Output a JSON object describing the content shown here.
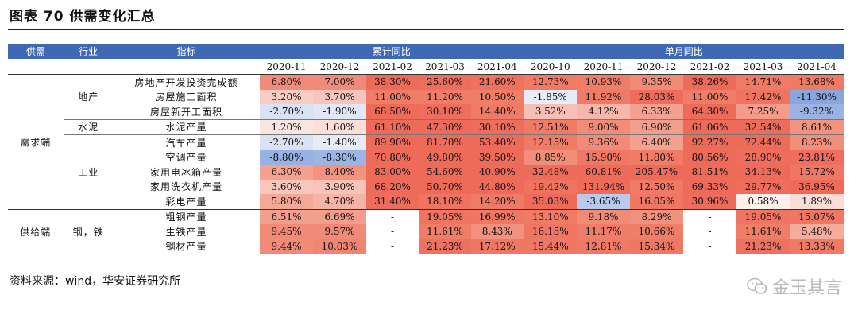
{
  "title": "图表 70 供需变化汇总",
  "source": "资料来源：wind，华安证券研究所",
  "watermark": "金玉其言",
  "watermark_icon": "wechat-icon",
  "headers": {
    "supply_demand": "供需",
    "industry": "行业",
    "indicator": "指标",
    "cumulative": "累计同比",
    "monthly": "单月同比"
  },
  "cumulative_dates": [
    "2020-11",
    "2020-12",
    "2021-02",
    "2021-03",
    "2021-04"
  ],
  "monthly_dates": [
    "2020-10",
    "2020-11",
    "2020-12",
    "2021-02",
    "2021-03",
    "2021-04"
  ],
  "groups": {
    "demand": "需求端",
    "supply": "供给端",
    "real_estate": "地产",
    "cement": "水泥",
    "industry": "工业",
    "steel": "钢，铁"
  },
  "rows": [
    {
      "indicator": "房地产开发投资完成额",
      "cells": [
        "6.80%",
        "7.00%",
        "38.30%",
        "25.60%",
        "21.60%",
        "12.73%",
        "10.93%",
        "9.35%",
        "38.26%",
        "14.71%",
        "13.68%"
      ],
      "colors": [
        "#f08a7a",
        "#f08a7a",
        "#ee6a59",
        "#ee6e5c",
        "#ee725f",
        "#ef7b67",
        "#ef7d68",
        "#f18b77",
        "#ee6a59",
        "#ef7a66",
        "#ef7b67"
      ]
    },
    {
      "indicator": "房屋施工面积",
      "cells": [
        "3.20%",
        "3.70%",
        "11.00%",
        "11.20%",
        "10.50%",
        "-1.85%",
        "11.92%",
        "28.03%",
        "11.00%",
        "17.42%",
        "-11.30%"
      ],
      "colors": [
        "#f9cdc4",
        "#f8c5bc",
        "#ef7d68",
        "#ef7d68",
        "#ef7e69",
        "#e8ecf8",
        "#ef7b67",
        "#ee6c5b",
        "#ef7d68",
        "#ee7461",
        "#8aa6dd"
      ]
    },
    {
      "indicator": "房屋新开工面积",
      "cells": [
        "-2.70%",
        "-1.90%",
        "68.50%",
        "30.10%",
        "14.40%",
        "3.52%",
        "4.12%",
        "6.33%",
        "64.30%",
        "7.25%",
        "-9.32%"
      ],
      "colors": [
        "#d9e2f4",
        "#e1e7f6",
        "#ee6a59",
        "#ee6d5c",
        "#ef7a66",
        "#f7bfb5",
        "#f7b6aa",
        "#f4a191",
        "#ee6a59",
        "#f39c8b",
        "#9ab3e2"
      ]
    },
    {
      "indicator": "水泥产量",
      "cells": [
        "1.20%",
        "1.60%",
        "61.10%",
        "47.30%",
        "30.10%",
        "12.51%",
        "9.00%",
        "6.90%",
        "61.06%",
        "32.54%",
        "8.61%"
      ],
      "colors": [
        "#fbe5e0",
        "#fbdfd9",
        "#ee6a59",
        "#ee6a59",
        "#ee6d5c",
        "#ef7b67",
        "#f18c78",
        "#f39e8d",
        "#ee6a59",
        "#ee6c5b",
        "#f2927f"
      ]
    },
    {
      "indicator": "汽车产量",
      "cells": [
        "-2.70%",
        "-1.40%",
        "89.90%",
        "81.70%",
        "53.40%",
        "12.15%",
        "9.36%",
        "6.40%",
        "92.27%",
        "72.44%",
        "8.23%"
      ],
      "colors": [
        "#d9e2f4",
        "#e6ebf7",
        "#ee6a59",
        "#ee6a59",
        "#ee6a59",
        "#ef7b67",
        "#f18b77",
        "#f4a190",
        "#ee6a59",
        "#ee6a59",
        "#f28f7c"
      ]
    },
    {
      "indicator": "空调产量",
      "cells": [
        "-8.80%",
        "-8.30%",
        "70.80%",
        "49.80%",
        "39.50%",
        "8.85%",
        "15.90%",
        "11.80%",
        "80.56%",
        "28.90%",
        "23.81%"
      ],
      "colors": [
        "#97b1e2",
        "#9cb5e3",
        "#ee6a59",
        "#ee6a59",
        "#ee6a59",
        "#f18e7a",
        "#ef7763",
        "#ef7c67",
        "#ee6a59",
        "#ee6d5c",
        "#ee6f5d"
      ]
    },
    {
      "indicator": "家用电冰箱产量",
      "cells": [
        "6.30%",
        "8.40%",
        "83.00%",
        "54.60%",
        "40.90%",
        "32.48%",
        "60.81%",
        "205.47%",
        "81.51%",
        "34.13%",
        "15.72%"
      ],
      "colors": [
        "#f4a191",
        "#f2927f",
        "#ee6a59",
        "#ee6a59",
        "#ee6a59",
        "#ee6c5b",
        "#ee6a59",
        "#ee6a59",
        "#ee6a59",
        "#ee6b5a",
        "#ef7763"
      ]
    },
    {
      "indicator": "家用洗衣机产量",
      "cells": [
        "3.60%",
        "3.90%",
        "68.20%",
        "50.70%",
        "44.80%",
        "19.42%",
        "131.94%",
        "12.50%",
        "69.33%",
        "29.77%",
        "36.95%"
      ],
      "colors": [
        "#f8c6bd",
        "#f8c3b9",
        "#ee6a59",
        "#ee6a59",
        "#ee6a59",
        "#ee7360",
        "#ee6a59",
        "#ef7b67",
        "#ee6a59",
        "#ee6d5c",
        "#ee6b5a"
      ]
    },
    {
      "indicator": "彩电产量",
      "cells": [
        "5.80%",
        "4.70%",
        "31.40%",
        "18.10%",
        "14.20%",
        "35.03%",
        "-3.65%",
        "16.05%",
        "30.96%",
        "0.58%",
        "1.89%"
      ],
      "colors": [
        "#f5a898",
        "#f6b3a6",
        "#ee6c5b",
        "#ef7461",
        "#ef7a66",
        "#ee6b5a",
        "#b8cbee",
        "#ef7763",
        "#ee6c5b",
        "#fdf1ee",
        "#fbdcd6"
      ]
    },
    {
      "indicator": "粗钢产量",
      "cells": [
        "6.51%",
        "6.69%",
        "-",
        "19.05%",
        "16.99%",
        "13.10%",
        "9.18%",
        "8.29%",
        "-",
        "19.05%",
        "15.07%"
      ],
      "colors": [
        "#f39f8e",
        "#f39d8c",
        "#ffffff",
        "#ef7462",
        "#ef7763",
        "#ef7a66",
        "#f18b77",
        "#f2917e",
        "#ffffff",
        "#ef7462",
        "#ef7864"
      ]
    },
    {
      "indicator": "生铁产量",
      "cells": [
        "9.45%",
        "9.57%",
        "-",
        "11.61%",
        "8.43%",
        "16.15%",
        "11.17%",
        "10.66%",
        "-",
        "11.61%",
        "5.48%"
      ],
      "colors": [
        "#f18a77",
        "#f18a76",
        "#ffffff",
        "#ef7d68",
        "#f2917e",
        "#ef7663",
        "#ef7d68",
        "#ef7e69",
        "#ffffff",
        "#ef7d68",
        "#f5ac9d"
      ]
    },
    {
      "indicator": "钢材产量",
      "cells": [
        "9.44%",
        "10.03%",
        "-",
        "21.23%",
        "17.12%",
        "15.44%",
        "12.81%",
        "15.34%",
        "-",
        "21.23%",
        "13.33%"
      ],
      "colors": [
        "#f18a77",
        "#f08573",
        "#ffffff",
        "#ee7260",
        "#ef7763",
        "#ef7864",
        "#ef7b67",
        "#ef7864",
        "#ffffff",
        "#ee7260",
        "#ef7a66"
      ]
    }
  ]
}
